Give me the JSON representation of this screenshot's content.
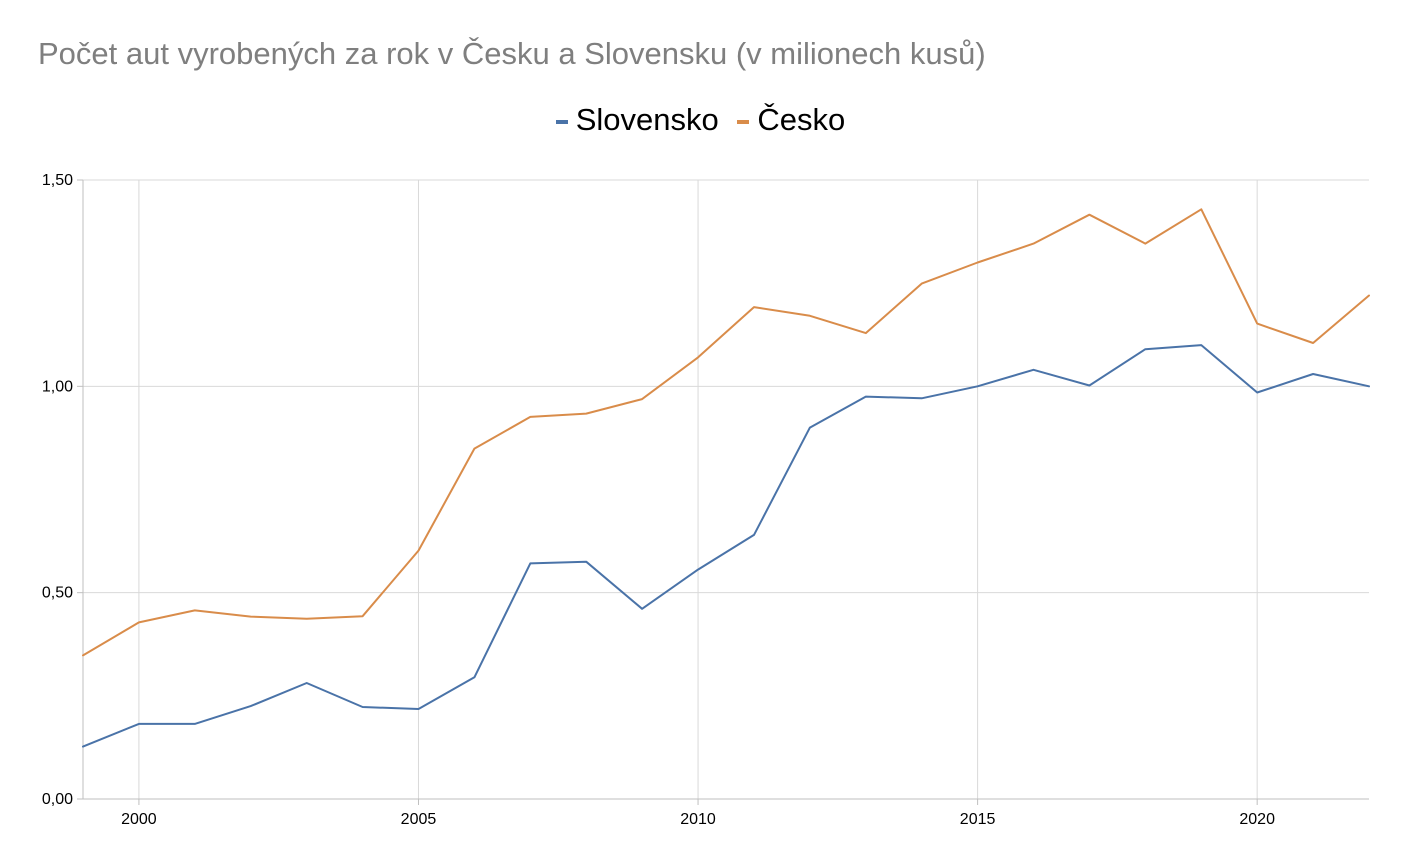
{
  "chart_data": {
    "type": "line",
    "title": "Počet aut vyrobených za rok v Česku a Slovensku (v milionech kusů)",
    "xlabel": "",
    "ylabel": "",
    "x": [
      1999,
      2000,
      2001,
      2002,
      2003,
      2004,
      2005,
      2006,
      2007,
      2008,
      2009,
      2010,
      2011,
      2012,
      2013,
      2014,
      2015,
      2016,
      2017,
      2018,
      2019,
      2020,
      2021,
      2022
    ],
    "xlim": [
      1999,
      2022
    ],
    "ylim": [
      0,
      1.5
    ],
    "x_ticks": [
      2000,
      2005,
      2010,
      2015,
      2020
    ],
    "x_tick_labels": [
      "2000",
      "2005",
      "2010",
      "2015",
      "2020"
    ],
    "y_ticks": [
      0,
      0.5,
      1.0,
      1.5
    ],
    "y_tick_labels": [
      "0,00",
      "0,50",
      "1,00",
      "1,50"
    ],
    "grid": true,
    "legend_position": "top-center",
    "series": [
      {
        "name": "Slovensko",
        "color": "#4a73a8",
        "values": [
          0.127,
          0.182,
          0.182,
          0.225,
          0.281,
          0.223,
          0.218,
          0.295,
          0.571,
          0.575,
          0.461,
          0.556,
          0.64,
          0.9,
          0.975,
          0.971,
          1.0,
          1.04,
          1.002,
          1.09,
          1.1,
          0.985,
          1.03,
          1.0
        ]
      },
      {
        "name": "Česko",
        "color": "#d98c4a",
        "values": [
          0.348,
          0.428,
          0.457,
          0.442,
          0.437,
          0.443,
          0.602,
          0.849,
          0.926,
          0.934,
          0.969,
          1.07,
          1.192,
          1.171,
          1.129,
          1.249,
          1.3,
          1.346,
          1.416,
          1.346,
          1.429,
          1.152,
          1.105,
          1.22
        ]
      }
    ]
  }
}
